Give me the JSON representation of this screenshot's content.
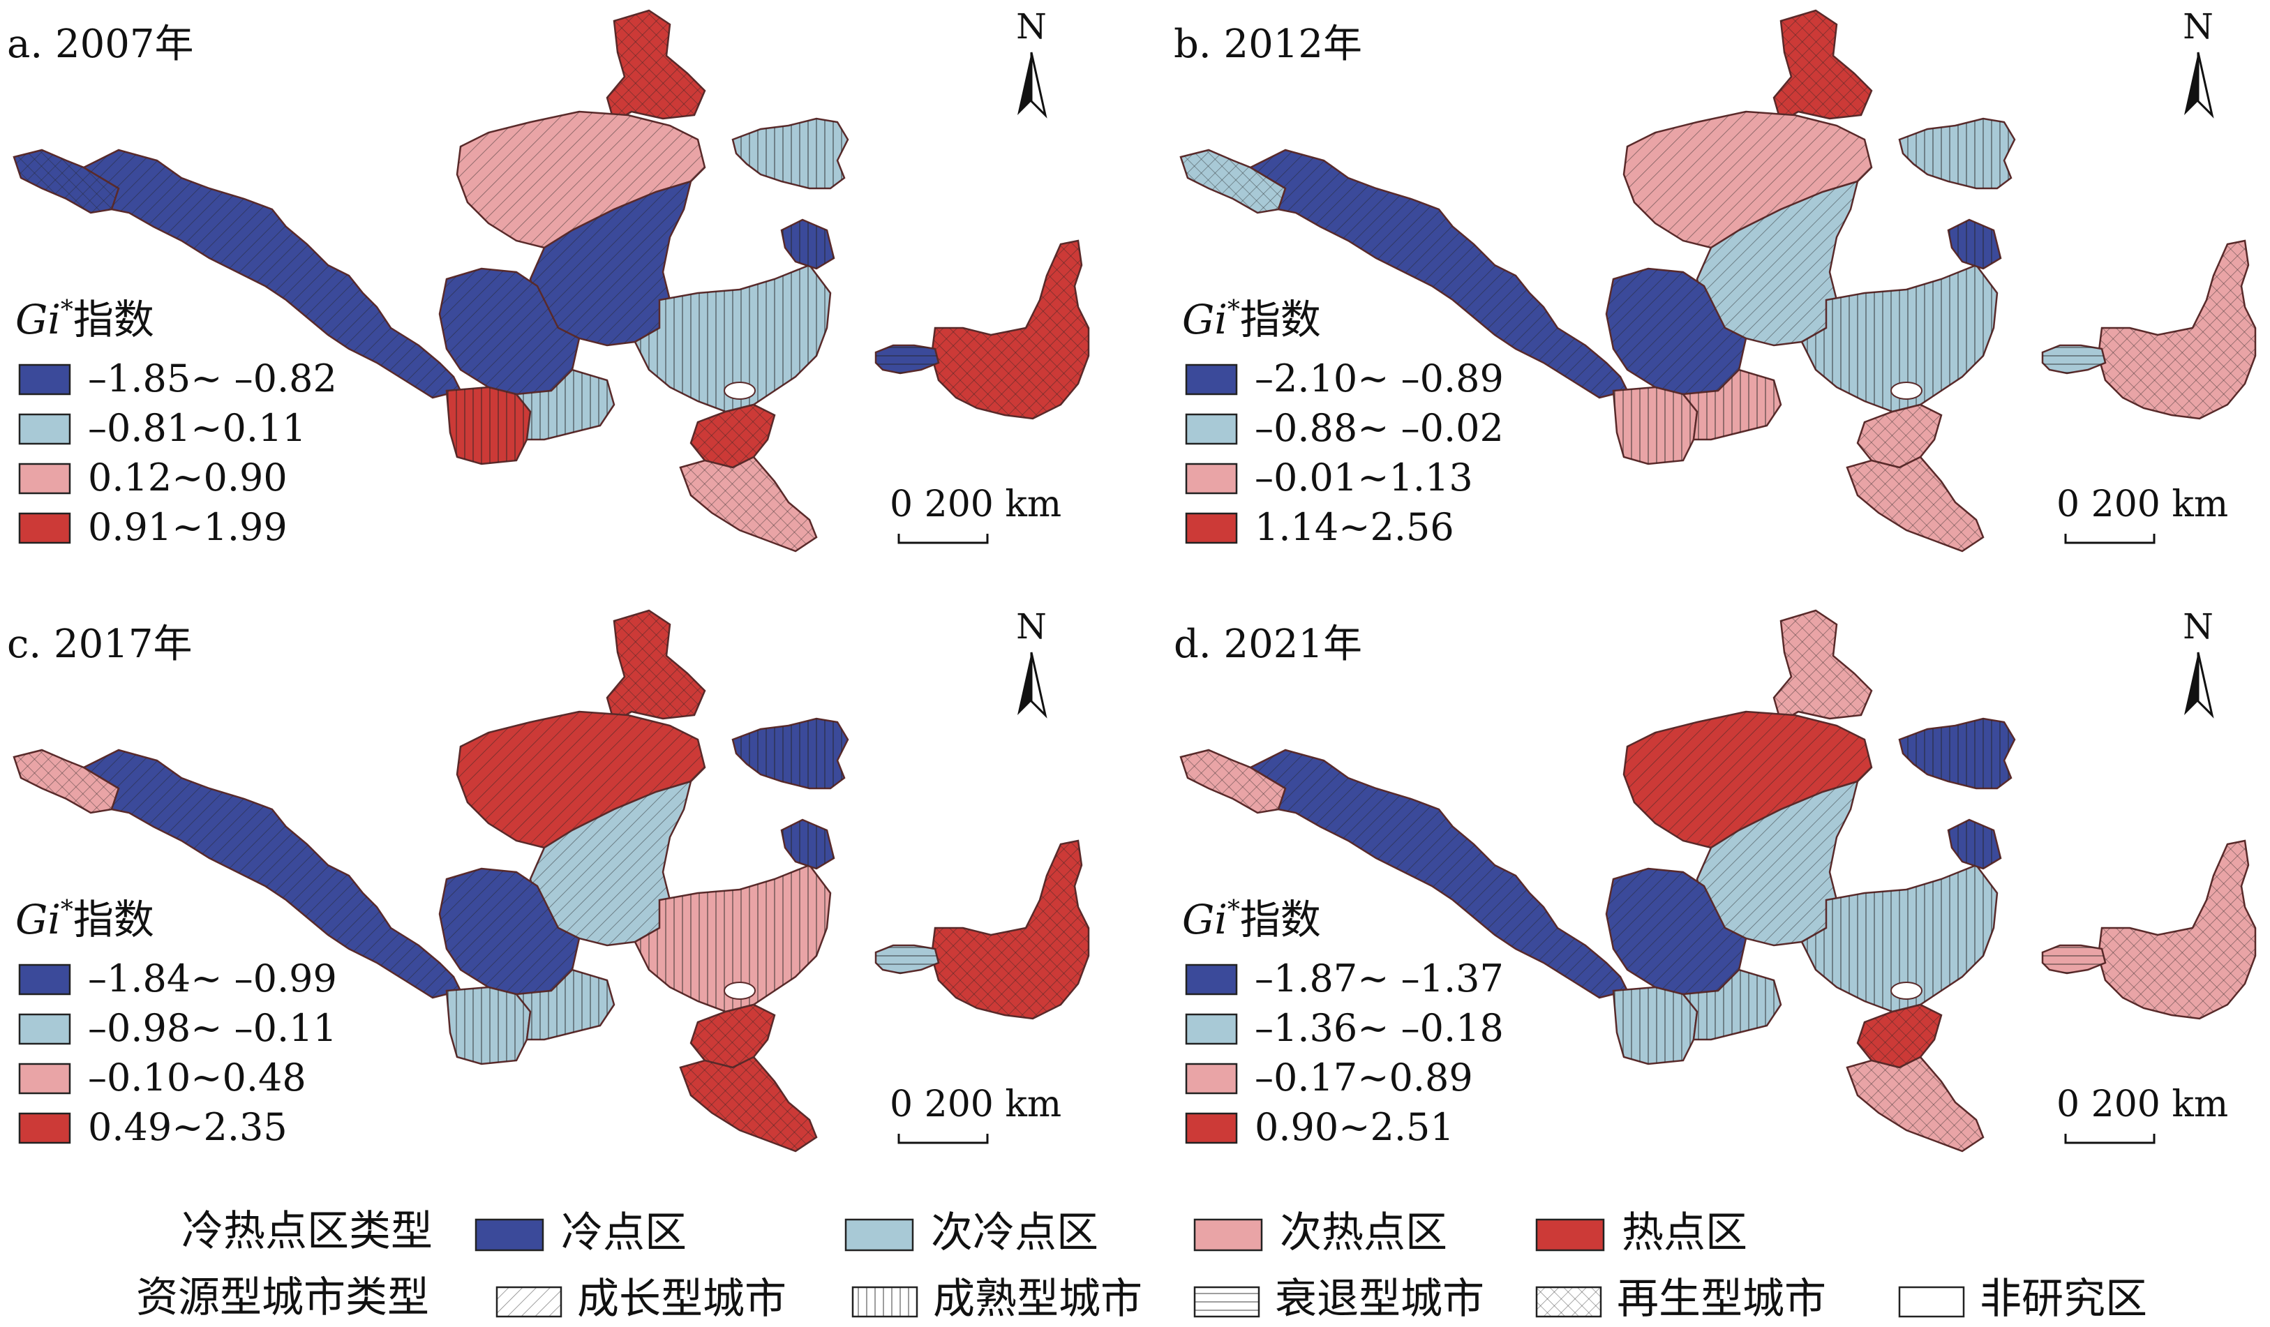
{
  "colors": {
    "cold": "#3b4a9a",
    "subcold": "#a8c9d6",
    "subhot": "#e9a4a6",
    "hot": "#cc3a37",
    "outline": "#5a2a2a"
  },
  "panels": [
    {
      "id": "a",
      "title": "a. 2007年",
      "gi_label_main": "Gi",
      "gi_label_sup": "*",
      "gi_label_suffix": "指数",
      "ranges": [
        "–1.85~ –0.82",
        "–0.81~0.11",
        "0.12~0.90",
        "0.91~1.99"
      ],
      "north": "N",
      "scale_label": "0  200 km"
    },
    {
      "id": "b",
      "title": "b. 2012年",
      "gi_label_main": "Gi",
      "gi_label_sup": "*",
      "gi_label_suffix": "指数",
      "ranges": [
        "–2.10~ –0.89",
        "–0.88~ –0.02",
        "–0.01~1.13",
        "1.14~2.56"
      ],
      "north": "N",
      "scale_label": "0  200 km"
    },
    {
      "id": "c",
      "title": "c. 2017年",
      "gi_label_main": "Gi",
      "gi_label_sup": "*",
      "gi_label_suffix": "指数",
      "ranges": [
        "–1.84~ –0.99",
        "–0.98~ –0.11",
        "–0.10~0.48",
        "0.49~2.35"
      ],
      "north": "N",
      "scale_label": "0  200 km"
    },
    {
      "id": "d",
      "title": "d. 2021年",
      "gi_label_main": "Gi",
      "gi_label_sup": "*",
      "gi_label_suffix": "指数",
      "ranges": [
        "–1.87~ –1.37",
        "–1.36~ –0.18",
        "–0.17~0.89",
        "0.90~2.51"
      ],
      "north": "N",
      "scale_label": "0  200 km"
    }
  ],
  "legend": {
    "row1_title": "冷热点区类型",
    "row1_items": [
      "冷点区",
      "次冷点区",
      "次热点区",
      "热点区"
    ],
    "row2_title": "资源型城市类型",
    "row2_items": [
      "成长型城市",
      "成熟型城市",
      "衰退型城市",
      "再生型城市",
      "非研究区"
    ]
  },
  "map_regions": [
    {
      "shape": "west-strip",
      "fill": [
        "cold",
        "subcold",
        "subhot",
        "subhot"
      ],
      "pattern": "cross"
    },
    {
      "shape": "west-corridor",
      "fill": [
        "cold",
        "cold",
        "cold",
        "cold"
      ],
      "pattern": "diag"
    },
    {
      "shape": "north-spire",
      "fill": [
        "hot",
        "hot",
        "hot",
        "subhot"
      ],
      "pattern": "cross"
    },
    {
      "shape": "north-plateau",
      "fill": [
        "subhot",
        "subhot",
        "hot",
        "hot"
      ],
      "pattern": "diag"
    },
    {
      "shape": "central-block",
      "fill": [
        "cold",
        "subcold",
        "subcold",
        "subcold"
      ],
      "pattern": "diag"
    },
    {
      "shape": "central-west",
      "fill": [
        "cold",
        "cold",
        "cold",
        "cold"
      ],
      "pattern": "diag"
    },
    {
      "shape": "south-west",
      "fill": [
        "hot",
        "subhot",
        "subcold",
        "subcold"
      ],
      "pattern": "vert"
    },
    {
      "shape": "middle-south",
      "fill": [
        "subcold",
        "subhot",
        "subcold",
        "subcold"
      ],
      "pattern": "vert"
    },
    {
      "shape": "east-block",
      "fill": [
        "subcold",
        "subcold",
        "subhot",
        "subcold"
      ],
      "pattern": "vert"
    },
    {
      "shape": "east-top",
      "fill": [
        "cold",
        "cold",
        "cold",
        "cold"
      ],
      "pattern": "vert"
    },
    {
      "shape": "south-hot",
      "fill": [
        "hot",
        "subhot",
        "hot",
        "hot"
      ],
      "pattern": "cross"
    },
    {
      "shape": "south-tail",
      "fill": [
        "subhot",
        "subhot",
        "hot",
        "subhot"
      ],
      "pattern": "cross"
    },
    {
      "shape": "north-east-island",
      "fill": [
        "subcold",
        "subcold",
        "cold",
        "cold"
      ],
      "pattern": "vert"
    },
    {
      "shape": "far-east",
      "fill": [
        "hot",
        "subhot",
        "hot",
        "subhot"
      ],
      "pattern": "cross"
    },
    {
      "shape": "far-east-west",
      "fill": [
        "cold",
        "subcold",
        "subcold",
        "subhot"
      ],
      "pattern": "horiz"
    }
  ]
}
